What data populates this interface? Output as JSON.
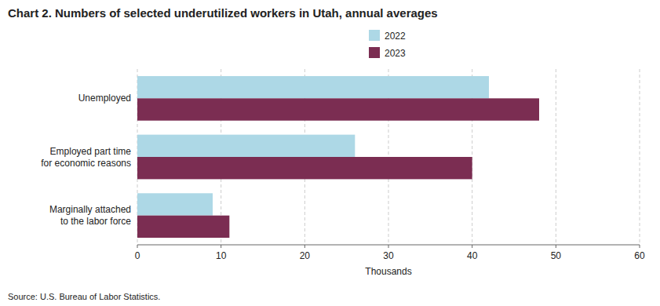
{
  "chart_data": {
    "type": "bar",
    "orientation": "horizontal",
    "title": "Chart 2. Numbers of selected underutilized workers in Utah, annual averages",
    "categories": [
      "Unemployed",
      "Employed part time\nfor economic reasons",
      "Marginally attached\nto the labor force"
    ],
    "series": [
      {
        "name": "2022",
        "color": "#add8e6",
        "values": [
          42,
          26,
          9
        ]
      },
      {
        "name": "2023",
        "color": "#7b2d52",
        "values": [
          48,
          40,
          11
        ]
      }
    ],
    "xlabel": "Thousands",
    "xlim": [
      0,
      60
    ],
    "xticks": [
      0,
      10,
      20,
      30,
      40,
      50,
      60
    ],
    "grid": true,
    "legend": "top",
    "source": "Source: U.S. Bureau of Labor Statistics."
  }
}
